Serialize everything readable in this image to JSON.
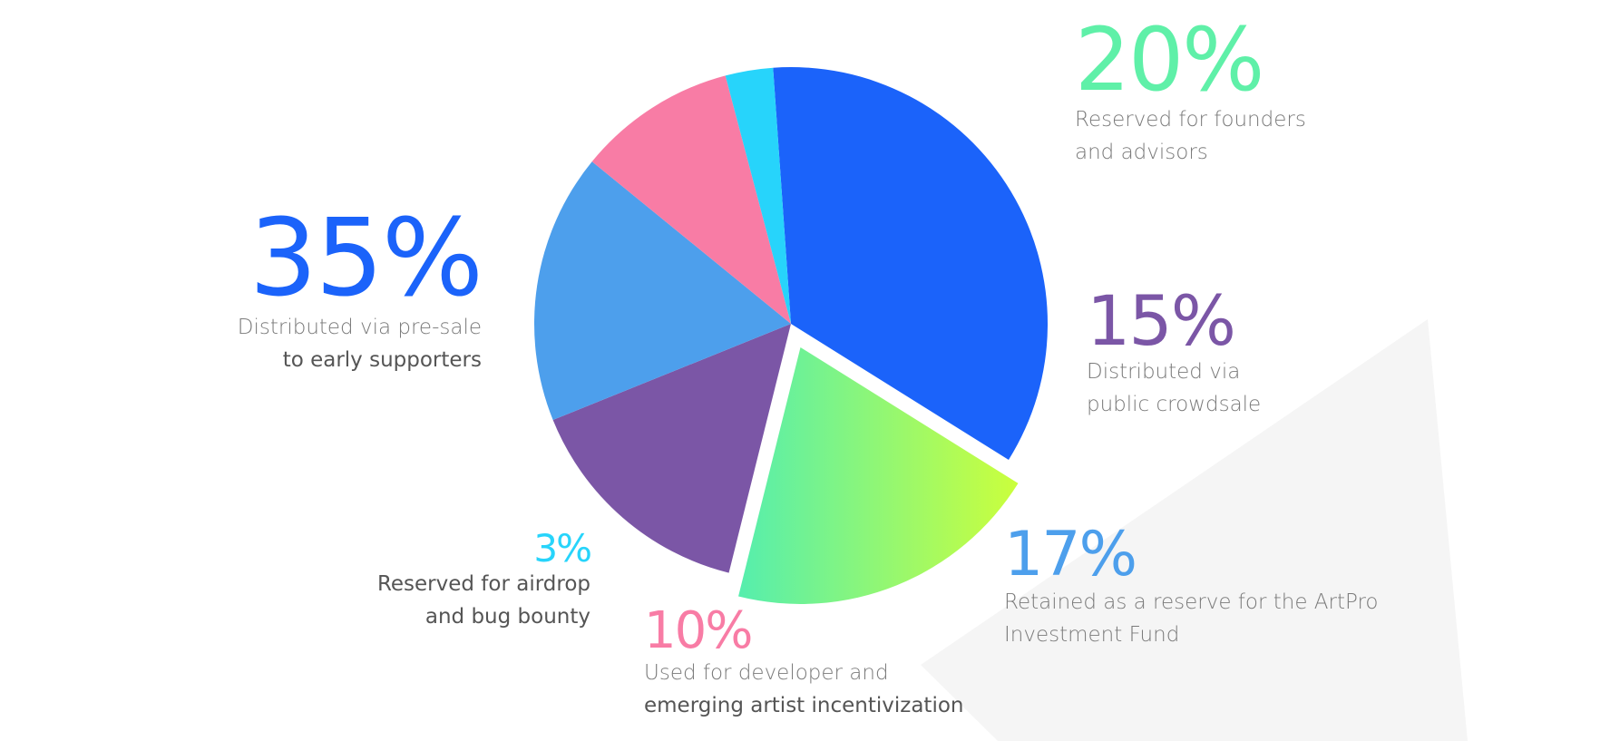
{
  "chart_data": {
    "type": "pie",
    "slices": [
      {
        "value": 35,
        "label": "35%",
        "text_line1": "Distributed via pre-sale",
        "text_line2": "to early supporters",
        "color": "#1b63fa"
      },
      {
        "value": 20,
        "label": "20%",
        "text_line1": "Reserved for founders",
        "text_line2": "and advisors",
        "color_start": "#55eeae",
        "color_end": "#cbff3c",
        "exploded": true
      },
      {
        "value": 15,
        "label": "15%",
        "text_line1": "Distributed via",
        "text_line2": "public crowdsale",
        "color": "#7b56a6"
      },
      {
        "value": 17,
        "label": "17%",
        "text_line1": "Retained as a reserve for the ArtPro",
        "text_line2": "Investment Fund",
        "color": "#4d9fec"
      },
      {
        "value": 10,
        "label": "10%",
        "text_line1": "Used for developer and",
        "text_line2": "emerging artist incentivization",
        "color": "#f87ca5"
      },
      {
        "value": 3,
        "label": "3%",
        "text_line1": "Reserved for airdrop",
        "text_line2": "and bug bounty",
        "color": "#27d4fb"
      }
    ]
  }
}
